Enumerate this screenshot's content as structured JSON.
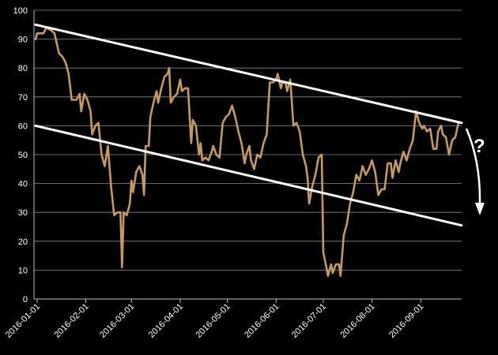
{
  "chart_data": {
    "type": "line",
    "title": "",
    "xlabel": "",
    "ylabel": "",
    "ylim": [
      0,
      100
    ],
    "yticks": [
      0,
      10,
      20,
      30,
      40,
      50,
      60,
      70,
      80,
      90,
      100
    ],
    "xticks": [
      "2016-01-01",
      "2016-02-01",
      "2016-03-01",
      "2016-04-01",
      "2016-05-01",
      "2016-06-01",
      "2016-07-01",
      "2016-08-01",
      "2016-09-01"
    ],
    "xlim": [
      "2015-12-30",
      "2016-09-27"
    ],
    "grid": true,
    "series": [
      {
        "color": "#c69a5e",
        "points": [
          [
            "2015-12-31",
            90
          ],
          [
            "2016-01-01",
            92
          ],
          [
            "2016-01-05",
            92
          ],
          [
            "2016-01-07",
            94
          ],
          [
            "2016-01-10",
            93
          ],
          [
            "2016-01-12",
            92
          ],
          [
            "2016-01-15",
            85
          ],
          [
            "2016-01-17",
            84
          ],
          [
            "2016-01-19",
            82
          ],
          [
            "2016-01-21",
            78
          ],
          [
            "2016-01-23",
            69
          ],
          [
            "2016-01-26",
            69
          ],
          [
            "2016-01-28",
            71
          ],
          [
            "2016-01-29",
            65
          ],
          [
            "2016-01-31",
            71
          ],
          [
            "2016-02-02",
            69
          ],
          [
            "2016-02-04",
            65
          ],
          [
            "2016-02-05",
            57
          ],
          [
            "2016-02-07",
            60
          ],
          [
            "2016-02-09",
            61
          ],
          [
            "2016-02-11",
            50
          ],
          [
            "2016-02-13",
            46
          ],
          [
            "2016-02-15",
            53
          ],
          [
            "2016-02-17",
            39
          ],
          [
            "2016-02-19",
            29
          ],
          [
            "2016-02-21",
            30
          ],
          [
            "2016-02-23",
            30
          ],
          [
            "2016-02-24",
            11
          ],
          [
            "2016-02-25",
            30
          ],
          [
            "2016-02-27",
            29
          ],
          [
            "2016-02-29",
            33
          ],
          [
            "2016-03-01",
            41
          ],
          [
            "2016-03-02",
            37
          ],
          [
            "2016-03-04",
            44
          ],
          [
            "2016-03-06",
            46
          ],
          [
            "2016-03-08",
            43
          ],
          [
            "2016-03-09",
            36
          ],
          [
            "2016-03-10",
            53
          ],
          [
            "2016-03-12",
            53
          ],
          [
            "2016-03-13",
            63
          ],
          [
            "2016-03-15",
            68
          ],
          [
            "2016-03-17",
            72
          ],
          [
            "2016-03-18",
            68
          ],
          [
            "2016-03-20",
            73
          ],
          [
            "2016-03-22",
            77
          ],
          [
            "2016-03-24",
            78
          ],
          [
            "2016-03-25",
            80
          ],
          [
            "2016-03-26",
            68
          ],
          [
            "2016-03-28",
            70
          ],
          [
            "2016-03-30",
            71
          ],
          [
            "2016-04-01",
            76
          ],
          [
            "2016-04-02",
            72
          ],
          [
            "2016-04-04",
            73
          ],
          [
            "2016-04-06",
            73
          ],
          [
            "2016-04-08",
            54
          ],
          [
            "2016-04-09",
            62
          ],
          [
            "2016-04-11",
            60
          ],
          [
            "2016-04-13",
            50
          ],
          [
            "2016-04-14",
            54
          ],
          [
            "2016-04-15",
            48
          ],
          [
            "2016-04-17",
            49
          ],
          [
            "2016-04-19",
            48
          ],
          [
            "2016-04-21",
            51
          ],
          [
            "2016-04-22",
            53
          ],
          [
            "2016-04-24",
            50
          ],
          [
            "2016-04-26",
            49
          ],
          [
            "2016-04-28",
            61
          ],
          [
            "2016-04-30",
            63
          ],
          [
            "2016-05-02",
            64
          ],
          [
            "2016-05-04",
            67
          ],
          [
            "2016-05-06",
            63
          ],
          [
            "2016-05-08",
            58
          ],
          [
            "2016-05-10",
            54
          ],
          [
            "2016-05-12",
            47
          ],
          [
            "2016-05-13",
            50
          ],
          [
            "2016-05-15",
            53
          ],
          [
            "2016-05-16",
            48
          ],
          [
            "2016-05-18",
            45
          ],
          [
            "2016-05-20",
            50
          ],
          [
            "2016-05-22",
            49
          ],
          [
            "2016-05-24",
            54
          ],
          [
            "2016-05-26",
            57
          ],
          [
            "2016-05-28",
            75
          ],
          [
            "2016-05-30",
            75
          ],
          [
            "2016-06-01",
            76
          ],
          [
            "2016-06-02",
            78
          ],
          [
            "2016-06-04",
            73
          ],
          [
            "2016-06-05",
            75
          ],
          [
            "2016-06-07",
            75
          ],
          [
            "2016-06-08",
            72
          ],
          [
            "2016-06-10",
            76
          ],
          [
            "2016-06-12",
            60
          ],
          [
            "2016-06-14",
            61
          ],
          [
            "2016-06-16",
            58
          ],
          [
            "2016-06-18",
            50
          ],
          [
            "2016-06-20",
            46
          ],
          [
            "2016-06-21",
            42
          ],
          [
            "2016-06-22",
            33
          ],
          [
            "2016-06-24",
            39
          ],
          [
            "2016-06-26",
            43
          ],
          [
            "2016-06-28",
            49
          ],
          [
            "2016-06-30",
            50
          ],
          [
            "2016-07-01",
            16
          ],
          [
            "2016-07-03",
            11
          ],
          [
            "2016-07-04",
            8
          ],
          [
            "2016-07-06",
            12
          ],
          [
            "2016-07-07",
            9
          ],
          [
            "2016-07-09",
            12
          ],
          [
            "2016-07-11",
            12
          ],
          [
            "2016-07-12",
            8
          ],
          [
            "2016-07-14",
            22
          ],
          [
            "2016-07-16",
            26
          ],
          [
            "2016-07-18",
            33
          ],
          [
            "2016-07-20",
            37
          ],
          [
            "2016-07-22",
            43
          ],
          [
            "2016-07-24",
            41
          ],
          [
            "2016-07-26",
            46
          ],
          [
            "2016-07-28",
            43
          ],
          [
            "2016-07-30",
            45
          ],
          [
            "2016-08-01",
            48
          ],
          [
            "2016-08-03",
            44
          ],
          [
            "2016-08-05",
            36
          ],
          [
            "2016-08-07",
            38
          ],
          [
            "2016-08-09",
            38
          ],
          [
            "2016-08-11",
            47
          ],
          [
            "2016-08-13",
            47
          ],
          [
            "2016-08-14",
            42
          ],
          [
            "2016-08-16",
            48
          ],
          [
            "2016-08-18",
            44
          ],
          [
            "2016-08-19",
            47
          ],
          [
            "2016-08-21",
            51
          ],
          [
            "2016-08-23",
            48
          ],
          [
            "2016-08-25",
            52
          ],
          [
            "2016-08-27",
            55
          ],
          [
            "2016-08-29",
            65
          ],
          [
            "2016-08-31",
            61
          ],
          [
            "2016-09-02",
            59
          ],
          [
            "2016-09-03",
            60
          ],
          [
            "2016-09-05",
            58
          ],
          [
            "2016-09-07",
            59
          ],
          [
            "2016-09-09",
            52
          ],
          [
            "2016-09-11",
            52
          ],
          [
            "2016-09-12",
            58
          ],
          [
            "2016-09-14",
            60
          ],
          [
            "2016-09-15",
            57
          ],
          [
            "2016-09-17",
            56
          ],
          [
            "2016-09-19",
            50
          ],
          [
            "2016-09-21",
            55
          ],
          [
            "2016-09-23",
            56
          ],
          [
            "2016-09-25",
            61
          ]
        ]
      }
    ],
    "trendlines": [
      {
        "from": [
          "2015-12-31",
          95
        ],
        "to": [
          "2016-09-27",
          61
        ],
        "color": "#ffffff"
      },
      {
        "from": [
          "2015-12-31",
          60
        ],
        "to": [
          "2016-09-27",
          25.5
        ],
        "color": "#ffffff"
      }
    ],
    "annotations": [
      {
        "text": "?",
        "color": "#ffffff"
      }
    ]
  }
}
